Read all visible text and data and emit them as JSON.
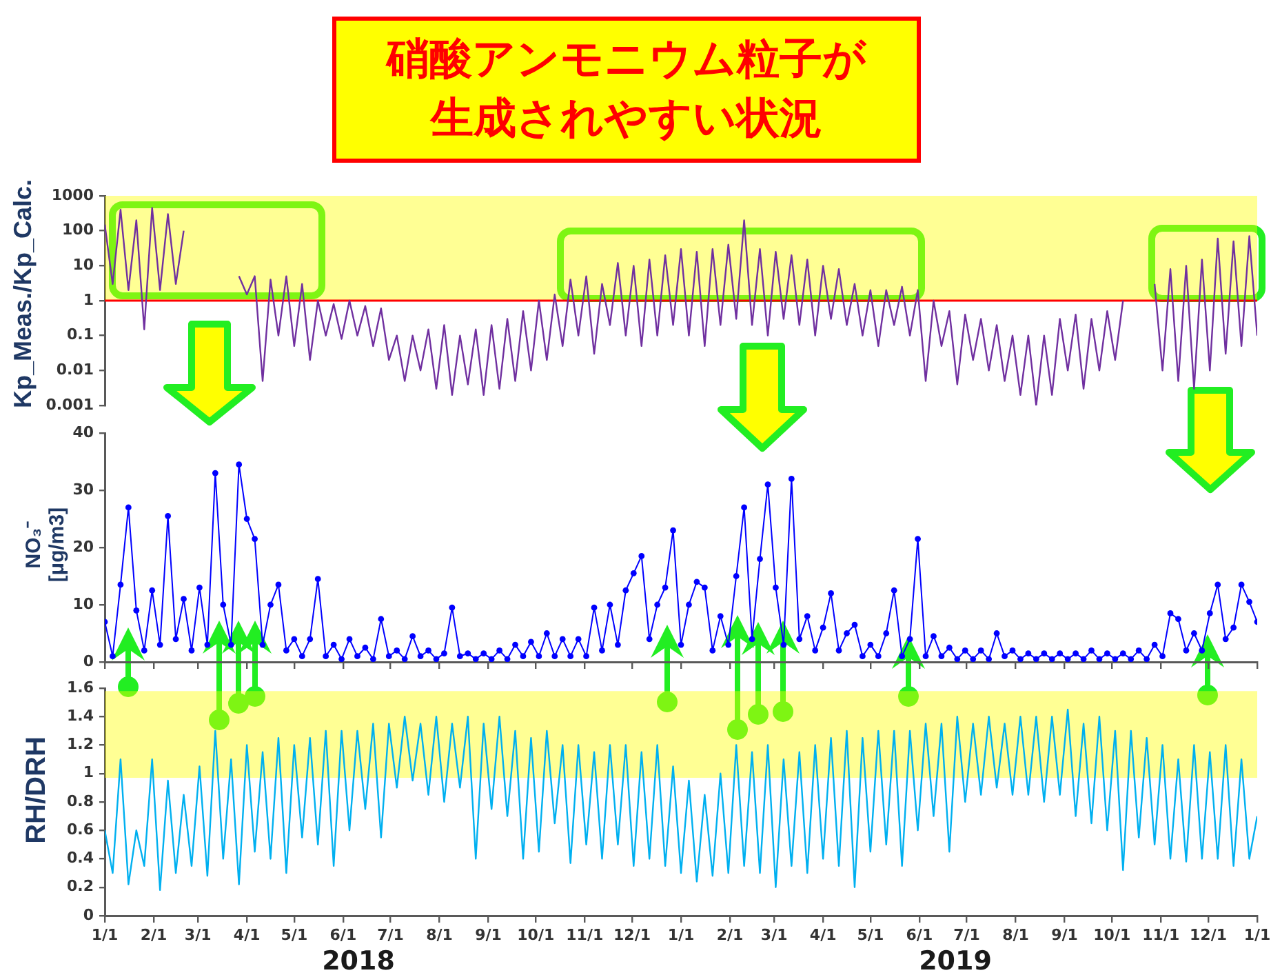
{
  "chart_data": [
    {
      "type": "line",
      "title": "硝酸アンモニウム粒子が生成されやすい状況",
      "ylabel": "Kp_Meas./Kp_Calc.",
      "log": true,
      "x": [
        "2018-01-01",
        "2018-01-06",
        "2018-01-11",
        "2018-01-16",
        "2018-01-21",
        "2018-01-26",
        "2018-01-31",
        "2018-02-05",
        "2018-02-10",
        "2018-02-15",
        "2018-02-20",
        "2018-02-25",
        "2018-03-02",
        "2018-03-07",
        "2018-03-12",
        "2018-03-17",
        "2018-03-22",
        "2018-03-27",
        "2018-04-01",
        "2018-04-06",
        "2018-04-11",
        "2018-04-16",
        "2018-04-21",
        "2018-04-26",
        "2018-05-01",
        "2018-05-06",
        "2018-05-11",
        "2018-05-16",
        "2018-05-21",
        "2018-05-26",
        "2018-05-31",
        "2018-06-05",
        "2018-06-10",
        "2018-06-15",
        "2018-06-20",
        "2018-06-25",
        "2018-06-30",
        "2018-07-05",
        "2018-07-10",
        "2018-07-15",
        "2018-07-20",
        "2018-07-25",
        "2018-07-30",
        "2018-08-04",
        "2018-08-09",
        "2018-08-14",
        "2018-08-19",
        "2018-08-24",
        "2018-08-29",
        "2018-09-03",
        "2018-09-08",
        "2018-09-13",
        "2018-09-18",
        "2018-09-23",
        "2018-09-28",
        "2018-10-03",
        "2018-10-08",
        "2018-10-13",
        "2018-10-18",
        "2018-10-23",
        "2018-10-28",
        "2018-11-02",
        "2018-11-07",
        "2018-11-12",
        "2018-11-17",
        "2018-11-22",
        "2018-11-27",
        "2018-12-02",
        "2018-12-07",
        "2018-12-12",
        "2018-12-17",
        "2018-12-22",
        "2018-12-27",
        "2019-01-01",
        "2019-01-06",
        "2019-01-11",
        "2019-01-16",
        "2019-01-21",
        "2019-01-26",
        "2019-01-31",
        "2019-02-05",
        "2019-02-10",
        "2019-02-15",
        "2019-02-20",
        "2019-02-25",
        "2019-03-02",
        "2019-03-07",
        "2019-03-12",
        "2019-03-17",
        "2019-03-22",
        "2019-03-27",
        "2019-04-01",
        "2019-04-06",
        "2019-04-11",
        "2019-04-16",
        "2019-04-21",
        "2019-04-26",
        "2019-05-01",
        "2019-05-06",
        "2019-05-11",
        "2019-05-16",
        "2019-05-21",
        "2019-05-26",
        "2019-05-31",
        "2019-06-05",
        "2019-06-10",
        "2019-06-15",
        "2019-06-20",
        "2019-06-25",
        "2019-06-30",
        "2019-07-05",
        "2019-07-10",
        "2019-07-15",
        "2019-07-20",
        "2019-07-25",
        "2019-07-30",
        "2019-08-04",
        "2019-08-09",
        "2019-08-14",
        "2019-08-19",
        "2019-08-24",
        "2019-08-29",
        "2019-09-03",
        "2019-09-08",
        "2019-09-13",
        "2019-09-18",
        "2019-09-23",
        "2019-09-28",
        "2019-10-03",
        "2019-10-08",
        "2019-10-13",
        "2019-10-18",
        "2019-10-23",
        "2019-10-28",
        "2019-11-02",
        "2019-11-07",
        "2019-11-12",
        "2019-11-17",
        "2019-11-22",
        "2019-11-27",
        "2019-12-02",
        "2019-12-07",
        "2019-12-12",
        "2019-12-17",
        "2019-12-22",
        "2019-12-27",
        "2020-01-01"
      ],
      "series": [
        {
          "color": "#7030a0",
          "values": [
            150,
            3,
            400,
            2,
            200,
            0.15,
            450,
            2,
            300,
            3,
            100,
            null,
            null,
            null,
            null,
            null,
            null,
            5,
            1.5,
            5,
            0.005,
            4,
            0.1,
            5,
            0.05,
            3,
            0.02,
            1,
            0.1,
            0.8,
            0.08,
            1,
            0.1,
            0.7,
            0.05,
            0.6,
            0.02,
            0.1,
            0.005,
            0.1,
            0.01,
            0.15,
            0.003,
            0.2,
            0.002,
            0.1,
            0.004,
            0.15,
            0.002,
            0.2,
            0.003,
            0.3,
            0.005,
            0.5,
            0.01,
            1,
            0.02,
            1.5,
            0.05,
            4,
            0.1,
            5,
            0.03,
            3,
            0.2,
            12,
            0.1,
            10,
            0.05,
            15,
            0.1,
            20,
            0.2,
            30,
            0.1,
            25,
            0.05,
            30,
            0.2,
            40,
            0.3,
            200,
            0.2,
            30,
            0.1,
            25,
            0.3,
            20,
            0.2,
            15,
            0.1,
            10,
            0.3,
            8,
            0.2,
            3,
            0.1,
            2,
            0.05,
            2,
            0.2,
            2.5,
            0.1,
            2,
            0.005,
            1,
            0.05,
            0.5,
            0.004,
            0.4,
            0.02,
            0.3,
            0.01,
            0.2,
            0.005,
            0.1,
            0.002,
            0.1,
            0.001,
            0.1,
            0.002,
            0.3,
            0.01,
            0.4,
            0.003,
            0.3,
            0.01,
            0.5,
            0.02,
            1,
            null,
            null,
            null,
            3,
            0.01,
            8,
            0.005,
            10,
            0.003,
            15,
            0.01,
            60,
            0.03,
            50,
            0.05,
            70,
            0.1
          ]
        }
      ],
      "xlim": [
        "2018-01-01",
        "2020-01-01"
      ],
      "ylim": [
        0.001,
        1000
      ],
      "yticks": [
        0.001,
        0.01,
        0.1,
        1,
        10,
        100,
        1000
      ],
      "tick_labels": "y",
      "bands": [
        {
          "axis": "y",
          "from": 1,
          "to": 1000,
          "color": "#ffff00"
        }
      ],
      "ref_lines": [
        {
          "axis": "y",
          "value": 1,
          "color": "#ff0000"
        }
      ]
    },
    {
      "type": "line",
      "ylabel": "NO₃⁻ [μg/m3]",
      "marker": "circle",
      "x": [
        "2018-01-01",
        "2018-01-06",
        "2018-01-11",
        "2018-01-16",
        "2018-01-21",
        "2018-01-26",
        "2018-01-31",
        "2018-02-05",
        "2018-02-10",
        "2018-02-15",
        "2018-02-20",
        "2018-02-25",
        "2018-03-02",
        "2018-03-07",
        "2018-03-12",
        "2018-03-17",
        "2018-03-22",
        "2018-03-27",
        "2018-04-01",
        "2018-04-06",
        "2018-04-11",
        "2018-04-16",
        "2018-04-21",
        "2018-04-26",
        "2018-05-01",
        "2018-05-06",
        "2018-05-11",
        "2018-05-16",
        "2018-05-21",
        "2018-05-26",
        "2018-05-31",
        "2018-06-05",
        "2018-06-10",
        "2018-06-15",
        "2018-06-20",
        "2018-06-25",
        "2018-06-30",
        "2018-07-05",
        "2018-07-10",
        "2018-07-15",
        "2018-07-20",
        "2018-07-25",
        "2018-07-30",
        "2018-08-04",
        "2018-08-09",
        "2018-08-14",
        "2018-08-19",
        "2018-08-24",
        "2018-08-29",
        "2018-09-03",
        "2018-09-08",
        "2018-09-13",
        "2018-09-18",
        "2018-09-23",
        "2018-09-28",
        "2018-10-03",
        "2018-10-08",
        "2018-10-13",
        "2018-10-18",
        "2018-10-23",
        "2018-10-28",
        "2018-11-02",
        "2018-11-07",
        "2018-11-12",
        "2018-11-17",
        "2018-11-22",
        "2018-11-27",
        "2018-12-02",
        "2018-12-07",
        "2018-12-12",
        "2018-12-17",
        "2018-12-22",
        "2018-12-27",
        "2019-01-01",
        "2019-01-06",
        "2019-01-11",
        "2019-01-16",
        "2019-01-21",
        "2019-01-26",
        "2019-01-31",
        "2019-02-05",
        "2019-02-10",
        "2019-02-15",
        "2019-02-20",
        "2019-02-25",
        "2019-03-02",
        "2019-03-07",
        "2019-03-12",
        "2019-03-17",
        "2019-03-22",
        "2019-03-27",
        "2019-04-01",
        "2019-04-06",
        "2019-04-11",
        "2019-04-16",
        "2019-04-21",
        "2019-04-26",
        "2019-05-01",
        "2019-05-06",
        "2019-05-11",
        "2019-05-16",
        "2019-05-21",
        "2019-05-26",
        "2019-05-31",
        "2019-06-05",
        "2019-06-10",
        "2019-06-15",
        "2019-06-20",
        "2019-06-25",
        "2019-06-30",
        "2019-07-05",
        "2019-07-10",
        "2019-07-15",
        "2019-07-20",
        "2019-07-25",
        "2019-07-30",
        "2019-08-04",
        "2019-08-09",
        "2019-08-14",
        "2019-08-19",
        "2019-08-24",
        "2019-08-29",
        "2019-09-03",
        "2019-09-08",
        "2019-09-13",
        "2019-09-18",
        "2019-09-23",
        "2019-09-28",
        "2019-10-03",
        "2019-10-08",
        "2019-10-13",
        "2019-10-18",
        "2019-10-23",
        "2019-10-28",
        "2019-11-02",
        "2019-11-07",
        "2019-11-12",
        "2019-11-17",
        "2019-11-22",
        "2019-11-27",
        "2019-12-02",
        "2019-12-07",
        "2019-12-12",
        "2019-12-17",
        "2019-12-22",
        "2019-12-27",
        "2020-01-01"
      ],
      "series": [
        {
          "color": "#0000ff",
          "values": [
            7,
            1,
            13.5,
            27,
            9,
            2,
            12.5,
            3,
            25.5,
            4,
            11,
            2,
            13,
            3,
            33,
            10,
            3,
            34.5,
            25,
            21.5,
            3,
            10,
            13.5,
            2,
            4,
            1,
            4,
            14.5,
            1,
            3,
            0.5,
            4,
            1,
            2.5,
            0.5,
            7.5,
            1,
            2,
            0.5,
            4.5,
            1,
            2,
            0.5,
            1.5,
            9.5,
            1,
            1.5,
            0.5,
            1.5,
            0.5,
            2,
            0.5,
            3,
            1,
            3.5,
            1,
            5,
            1,
            4,
            1,
            4,
            1,
            9.5,
            2,
            10,
            3,
            12.5,
            15.5,
            18.5,
            4,
            10,
            13,
            23,
            3,
            10,
            14,
            13,
            2,
            8,
            3,
            15,
            27,
            4,
            18,
            31,
            13,
            3,
            32,
            4,
            8,
            2,
            6,
            12,
            2,
            5,
            6.5,
            1,
            3,
            1,
            5,
            12.5,
            1,
            4,
            21.5,
            1,
            4.5,
            1,
            2.5,
            0.5,
            2,
            0.5,
            2,
            0.5,
            5,
            1,
            2,
            0.5,
            1.5,
            0.5,
            1.5,
            0.5,
            1.5,
            0.5,
            1.5,
            0.5,
            2,
            0.5,
            1.5,
            0.5,
            1.5,
            0.5,
            2,
            0.5,
            3,
            1,
            8.5,
            7.5,
            2,
            5,
            2,
            8.5,
            13.5,
            4,
            6,
            13.5,
            10.5,
            7
          ]
        }
      ],
      "xlim": [
        "2018-01-01",
        "2020-01-01"
      ],
      "xticks": [
        {
          "value": "2018-01-01",
          "label": null
        },
        {
          "value": "2018-02-01",
          "label": null
        },
        {
          "value": "2018-03-01",
          "label": null
        },
        {
          "value": "2018-04-01",
          "label": null
        },
        {
          "value": "2018-05-01",
          "label": null
        },
        {
          "value": "2018-06-01",
          "label": null
        },
        {
          "value": "2018-07-01",
          "label": null
        },
        {
          "value": "2018-08-01",
          "label": null
        },
        {
          "value": "2018-09-01",
          "label": null
        },
        {
          "value": "2018-10-01",
          "label": null
        },
        {
          "value": "2018-11-01",
          "label": null
        },
        {
          "value": "2018-12-01",
          "label": null
        },
        {
          "value": "2019-01-01",
          "label": null
        },
        {
          "value": "2019-02-01",
          "label": null
        },
        {
          "value": "2019-03-01",
          "label": null
        },
        {
          "value": "2019-04-01",
          "label": null
        },
        {
          "value": "2019-05-01",
          "label": null
        },
        {
          "value": "2019-06-01",
          "label": null
        },
        {
          "value": "2019-07-01",
          "label": null
        },
        {
          "value": "2019-08-01",
          "label": null
        },
        {
          "value": "2019-09-01",
          "label": null
        },
        {
          "value": "2019-10-01",
          "label": null
        },
        {
          "value": "2019-11-01",
          "label": null
        },
        {
          "value": "2019-12-01",
          "label": null
        },
        {
          "value": "2020-01-01",
          "label": null
        }
      ],
      "ylim": [
        0,
        40
      ],
      "yticks": [
        0,
        10,
        20,
        30,
        40
      ],
      "tick_labels": "y"
    },
    {
      "type": "line",
      "ylabel": "RH/DRH",
      "x": [
        "2018-01-01",
        "2018-01-06",
        "2018-01-11",
        "2018-01-16",
        "2018-01-21",
        "2018-01-26",
        "2018-01-31",
        "2018-02-05",
        "2018-02-10",
        "2018-02-15",
        "2018-02-20",
        "2018-02-25",
        "2018-03-02",
        "2018-03-07",
        "2018-03-12",
        "2018-03-17",
        "2018-03-22",
        "2018-03-27",
        "2018-04-01",
        "2018-04-06",
        "2018-04-11",
        "2018-04-16",
        "2018-04-21",
        "2018-04-26",
        "2018-05-01",
        "2018-05-06",
        "2018-05-11",
        "2018-05-16",
        "2018-05-21",
        "2018-05-26",
        "2018-05-31",
        "2018-06-05",
        "2018-06-10",
        "2018-06-15",
        "2018-06-20",
        "2018-06-25",
        "2018-06-30",
        "2018-07-05",
        "2018-07-10",
        "2018-07-15",
        "2018-07-20",
        "2018-07-25",
        "2018-07-30",
        "2018-08-04",
        "2018-08-09",
        "2018-08-14",
        "2018-08-19",
        "2018-08-24",
        "2018-08-29",
        "2018-09-03",
        "2018-09-08",
        "2018-09-13",
        "2018-09-18",
        "2018-09-23",
        "2018-09-28",
        "2018-10-03",
        "2018-10-08",
        "2018-10-13",
        "2018-10-18",
        "2018-10-23",
        "2018-10-28",
        "2018-11-02",
        "2018-11-07",
        "2018-11-12",
        "2018-11-17",
        "2018-11-22",
        "2018-11-27",
        "2018-12-02",
        "2018-12-07",
        "2018-12-12",
        "2018-12-17",
        "2018-12-22",
        "2018-12-27",
        "2019-01-01",
        "2019-01-06",
        "2019-01-11",
        "2019-01-16",
        "2019-01-21",
        "2019-01-26",
        "2019-01-31",
        "2019-02-05",
        "2019-02-10",
        "2019-02-15",
        "2019-02-20",
        "2019-02-25",
        "2019-03-02",
        "2019-03-07",
        "2019-03-12",
        "2019-03-17",
        "2019-03-22",
        "2019-03-27",
        "2019-04-01",
        "2019-04-06",
        "2019-04-11",
        "2019-04-16",
        "2019-04-21",
        "2019-04-26",
        "2019-05-01",
        "2019-05-06",
        "2019-05-11",
        "2019-05-16",
        "2019-05-21",
        "2019-05-26",
        "2019-05-31",
        "2019-06-05",
        "2019-06-10",
        "2019-06-15",
        "2019-06-20",
        "2019-06-25",
        "2019-06-30",
        "2019-07-05",
        "2019-07-10",
        "2019-07-15",
        "2019-07-20",
        "2019-07-25",
        "2019-07-30",
        "2019-08-04",
        "2019-08-09",
        "2019-08-14",
        "2019-08-19",
        "2019-08-24",
        "2019-08-29",
        "2019-09-03",
        "2019-09-08",
        "2019-09-13",
        "2019-09-18",
        "2019-09-23",
        "2019-09-28",
        "2019-10-03",
        "2019-10-08",
        "2019-10-13",
        "2019-10-18",
        "2019-10-23",
        "2019-10-28",
        "2019-11-02",
        "2019-11-07",
        "2019-11-12",
        "2019-11-17",
        "2019-11-22",
        "2019-11-27",
        "2019-12-02",
        "2019-12-07",
        "2019-12-12",
        "2019-12-17",
        "2019-12-22",
        "2019-12-27",
        "2020-01-01"
      ],
      "series": [
        {
          "color": "#00b0f0",
          "values": [
            0.6,
            0.3,
            1.1,
            0.22,
            0.6,
            0.35,
            1.1,
            0.18,
            0.95,
            0.3,
            0.85,
            0.35,
            1.05,
            0.28,
            1.3,
            0.4,
            1.1,
            0.22,
            1.2,
            0.45,
            1.15,
            0.4,
            1.25,
            0.3,
            1.2,
            0.55,
            1.25,
            0.5,
            1.3,
            0.35,
            1.3,
            0.6,
            1.3,
            0.75,
            1.35,
            0.55,
            1.35,
            0.9,
            1.4,
            0.95,
            1.35,
            0.85,
            1.4,
            0.8,
            1.35,
            0.9,
            1.4,
            0.4,
            1.35,
            0.75,
            1.4,
            0.7,
            1.3,
            0.4,
            1.25,
            0.45,
            1.3,
            0.65,
            1.2,
            0.37,
            1.2,
            0.5,
            1.15,
            0.4,
            1.2,
            0.5,
            1.2,
            0.35,
            1.15,
            0.4,
            1.2,
            0.35,
            1.05,
            0.3,
            0.95,
            0.24,
            0.85,
            0.28,
            1,
            0.3,
            1.2,
            0.35,
            1.15,
            0.3,
            1.2,
            0.2,
            1.1,
            0.35,
            1.15,
            0.3,
            1.2,
            0.4,
            1.25,
            0.35,
            1.3,
            0.2,
            1.25,
            0.45,
            1.3,
            0.5,
            1.3,
            0.35,
            1.3,
            0.6,
            1.35,
            0.7,
            1.35,
            0.45,
            1.4,
            0.8,
            1.35,
            0.85,
            1.4,
            0.9,
            1.35,
            0.85,
            1.4,
            0.85,
            1.4,
            0.8,
            1.4,
            0.85,
            1.45,
            0.7,
            1.35,
            0.65,
            1.4,
            0.6,
            1.3,
            0.32,
            1.3,
            0.55,
            1.25,
            0.5,
            1.2,
            0.4,
            1.1,
            0.38,
            1.2,
            0.4,
            1.15,
            0.4,
            1.2,
            0.35,
            1.1,
            0.4,
            0.7
          ]
        }
      ],
      "xlim": [
        "2018-01-01",
        "2020-01-01"
      ],
      "xticks": [
        {
          "value": "2018-01-01",
          "label": "1/1"
        },
        {
          "value": "2018-02-01",
          "label": "2/1"
        },
        {
          "value": "2018-03-01",
          "label": "3/1"
        },
        {
          "value": "2018-04-01",
          "label": "4/1"
        },
        {
          "value": "2018-05-01",
          "label": "5/1"
        },
        {
          "value": "2018-06-01",
          "label": "6/1"
        },
        {
          "value": "2018-07-01",
          "label": "7/1"
        },
        {
          "value": "2018-08-01",
          "label": "8/1"
        },
        {
          "value": "2018-09-01",
          "label": "9/1"
        },
        {
          "value": "2018-10-01",
          "label": "10/1"
        },
        {
          "value": "2018-11-01",
          "label": "11/1"
        },
        {
          "value": "2018-12-01",
          "label": "12/1"
        },
        {
          "value": "2019-01-01",
          "label": "1/1"
        },
        {
          "value": "2019-02-01",
          "label": "2/1"
        },
        {
          "value": "2019-03-01",
          "label": "3/1"
        },
        {
          "value": "2019-04-01",
          "label": "4/1"
        },
        {
          "value": "2019-05-01",
          "label": "5/1"
        },
        {
          "value": "2019-06-01",
          "label": "6/1"
        },
        {
          "value": "2019-07-01",
          "label": "7/1"
        },
        {
          "value": "2019-08-01",
          "label": "8/1"
        },
        {
          "value": "2019-09-01",
          "label": "9/1"
        },
        {
          "value": "2019-10-01",
          "label": "10/1"
        },
        {
          "value": "2019-11-01",
          "label": "11/1"
        },
        {
          "value": "2019-12-01",
          "label": "12/1"
        },
        {
          "value": "2020-01-01",
          "label": "1/1"
        }
      ],
      "ylim": [
        0,
        1.6
      ],
      "yticks": [
        0,
        0.2,
        0.4,
        0.6,
        0.8,
        1,
        1.2,
        1.4,
        1.6
      ],
      "bands": [
        {
          "axis": "y",
          "from": 0.97,
          "to": 1.58,
          "color": "#ffff00"
        }
      ],
      "annotations": [
        "2018",
        "2019"
      ]
    }
  ]
}
